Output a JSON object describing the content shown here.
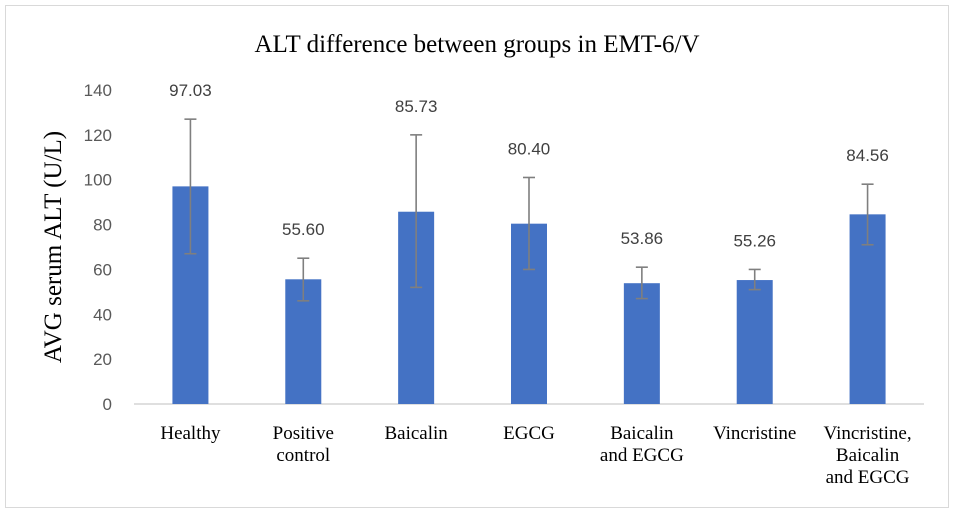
{
  "chart_data": {
    "type": "bar",
    "title": "ALT difference between groups in EMT-6/V",
    "xlabel": "",
    "ylabel": "AVG serum ALT (U/L)",
    "ylim": [
      0,
      140
    ],
    "yticks": [
      0,
      20,
      40,
      60,
      80,
      100,
      120,
      140
    ],
    "grid": false,
    "legend": "none",
    "bar_color": "#4472c4",
    "error_bar_color": "#7f7f7f",
    "categories": [
      [
        "Healthy"
      ],
      [
        "Positive",
        "control"
      ],
      [
        "Baicalin"
      ],
      [
        "EGCG"
      ],
      [
        "Baicalin",
        "and EGCG"
      ],
      [
        "Vincristine"
      ],
      [
        "Vincristine,",
        "Baicalin",
        "and EGCG"
      ]
    ],
    "values": [
      97.03,
      55.6,
      85.73,
      80.4,
      53.86,
      55.26,
      84.56
    ],
    "value_labels": [
      "97.03",
      "55.60",
      "85.73",
      "80.40",
      "53.86",
      "55.26",
      "84.56"
    ],
    "error_low": [
      67,
      46,
      52,
      60,
      47,
      51,
      71
    ],
    "error_high": [
      127,
      65,
      120,
      101,
      61,
      60,
      98
    ]
  }
}
